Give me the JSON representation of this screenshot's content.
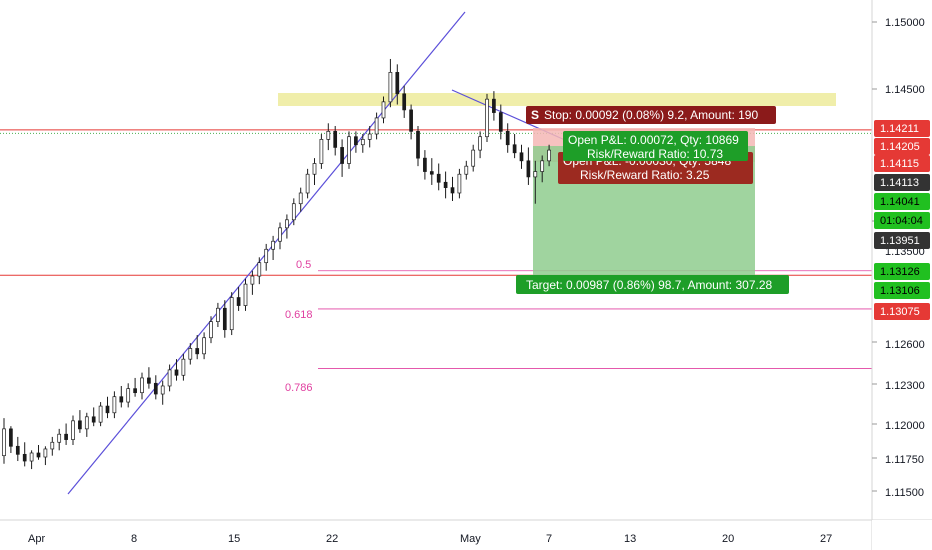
{
  "chart_data": {
    "type": "candlestick",
    "ylim": [
      1.113,
      1.1518
    ],
    "y_ticks": [
      "1.15000",
      "1.14500",
      "1.13500",
      "1.12600",
      "1.12300",
      "1.12000",
      "1.11750",
      "1.11500"
    ],
    "x_ticks": [
      "Apr",
      "8",
      "15",
      "22",
      "May",
      "7",
      "13",
      "20",
      "27"
    ],
    "overlay": {
      "gridlines": false,
      "horizontal_lines": [
        {
          "name": "upper-red-line",
          "y": 1.14211,
          "color": "#e53935"
        },
        {
          "name": "target-red-line",
          "y": 1.13126,
          "color": "#e53935"
        },
        {
          "name": "fib-0.5-line",
          "y": 1.1316,
          "color": "#e040a0",
          "label": "0.5"
        },
        {
          "name": "fib-0.618-line",
          "y": 1.12875,
          "color": "#e040a0",
          "label": "0.618"
        },
        {
          "name": "fib-0.786-line",
          "y": 1.1243,
          "color": "#e040a0",
          "label": "0.786"
        },
        {
          "name": "green-dotted-line",
          "y": 1.14185,
          "color": "#4caf50"
        }
      ],
      "resistance_zone": {
        "y_top": 1.14445,
        "y_bottom": 1.14375,
        "color": "#f0eeaa"
      }
    },
    "price_badges": [
      {
        "value": "1.14211",
        "bg": "#e53935",
        "fg": "#ffffff"
      },
      {
        "value": "1.14205",
        "bg": "#e53935",
        "fg": "#ffffff"
      },
      {
        "value": "1.14115",
        "bg": "#e53935",
        "fg": "#ffffff"
      },
      {
        "value": "1.14113",
        "bg": "#333333",
        "fg": "#ffffff"
      },
      {
        "value": "1.14041",
        "bg": "#21c020",
        "fg": "#000000"
      },
      {
        "value": "01:04:04",
        "bg": "#21c020",
        "fg": "#000000"
      },
      {
        "value": "1.13951",
        "bg": "#333333",
        "fg": "#ffffff"
      },
      {
        "value": "1.13126",
        "bg": "#21c020",
        "fg": "#000000"
      },
      {
        "value": "1.13106",
        "bg": "#21c020",
        "fg": "#000000"
      },
      {
        "value": "1.13075",
        "bg": "#e53935",
        "fg": "#ffffff"
      }
    ],
    "trade_boxes": {
      "stop_label": "S",
      "stop_text": "Stop: 0.00092 (0.08%) 9.2, Amount: 190",
      "open_pl_1": "Open P&L: 0.00072, Qty: 10869",
      "rr_1": "Risk/Reward Ratio: 10.73",
      "open_pl_2": "Open P&L: -0.00030, Qty: 5848",
      "rr_2": "Risk/Reward Ratio: 3.25",
      "target_text": "Target: 0.00987 (0.86%) 98.7, Amount: 307.28"
    },
    "candles": [
      [
        1.1178,
        1.1206,
        1.1172,
        1.1198
      ],
      [
        1.1198,
        1.12,
        1.118,
        1.1185
      ],
      [
        1.1185,
        1.1192,
        1.1174,
        1.1179
      ],
      [
        1.1179,
        1.1188,
        1.117,
        1.1174
      ],
      [
        1.1174,
        1.1182,
        1.1168,
        1.118
      ],
      [
        1.118,
        1.1186,
        1.1175,
        1.1177
      ],
      [
        1.1177,
        1.1185,
        1.1171,
        1.1183
      ],
      [
        1.1183,
        1.1192,
        1.1178,
        1.1188
      ],
      [
        1.1188,
        1.1198,
        1.1182,
        1.1194
      ],
      [
        1.1194,
        1.1202,
        1.1186,
        1.119
      ],
      [
        1.119,
        1.1208,
        1.1186,
        1.1204
      ],
      [
        1.1204,
        1.1212,
        1.1195,
        1.1198
      ],
      [
        1.1198,
        1.121,
        1.1192,
        1.1207
      ],
      [
        1.1207,
        1.1214,
        1.12,
        1.1203
      ],
      [
        1.1203,
        1.1218,
        1.12,
        1.1215
      ],
      [
        1.1215,
        1.1222,
        1.1206,
        1.121
      ],
      [
        1.121,
        1.1226,
        1.1206,
        1.1222
      ],
      [
        1.1222,
        1.123,
        1.1214,
        1.1218
      ],
      [
        1.1218,
        1.1232,
        1.1214,
        1.1228
      ],
      [
        1.1228,
        1.1236,
        1.1222,
        1.1225
      ],
      [
        1.1225,
        1.124,
        1.122,
        1.1236
      ],
      [
        1.1236,
        1.1244,
        1.1228,
        1.1232
      ],
      [
        1.1232,
        1.1238,
        1.122,
        1.1224
      ],
      [
        1.1224,
        1.1234,
        1.1216,
        1.123
      ],
      [
        1.123,
        1.1246,
        1.1226,
        1.1242
      ],
      [
        1.1242,
        1.125,
        1.1234,
        1.1238
      ],
      [
        1.1238,
        1.1254,
        1.1234,
        1.125
      ],
      [
        1.125,
        1.1262,
        1.1246,
        1.1258
      ],
      [
        1.1258,
        1.1268,
        1.125,
        1.1254
      ],
      [
        1.1254,
        1.127,
        1.125,
        1.1266
      ],
      [
        1.1266,
        1.1282,
        1.1262,
        1.1278
      ],
      [
        1.1278,
        1.1292,
        1.1274,
        1.1288
      ],
      [
        1.1288,
        1.1294,
        1.1266,
        1.1272
      ],
      [
        1.1272,
        1.13,
        1.1268,
        1.1296
      ],
      [
        1.1296,
        1.1304,
        1.1286,
        1.129
      ],
      [
        1.129,
        1.131,
        1.1286,
        1.1306
      ],
      [
        1.1306,
        1.1316,
        1.1298,
        1.1312
      ],
      [
        1.1312,
        1.1326,
        1.1306,
        1.1322
      ],
      [
        1.1322,
        1.1336,
        1.1316,
        1.1332
      ],
      [
        1.1332,
        1.1342,
        1.1324,
        1.1338
      ],
      [
        1.1338,
        1.1352,
        1.1332,
        1.1348
      ],
      [
        1.1348,
        1.1358,
        1.134,
        1.1354
      ],
      [
        1.1354,
        1.137,
        1.135,
        1.1366
      ],
      [
        1.1366,
        1.1378,
        1.136,
        1.1374
      ],
      [
        1.1374,
        1.1392,
        1.137,
        1.1388
      ],
      [
        1.1388,
        1.14,
        1.138,
        1.1396
      ],
      [
        1.1396,
        1.1418,
        1.1392,
        1.1414
      ],
      [
        1.1414,
        1.1426,
        1.1406,
        1.142
      ],
      [
        1.142,
        1.1424,
        1.1402,
        1.1408
      ],
      [
        1.1408,
        1.1414,
        1.1386,
        1.1396
      ],
      [
        1.1396,
        1.142,
        1.1392,
        1.1416
      ],
      [
        1.1416,
        1.142,
        1.1404,
        1.141
      ],
      [
        1.141,
        1.1418,
        1.1404,
        1.1414
      ],
      [
        1.1414,
        1.1424,
        1.1408,
        1.1418
      ],
      [
        1.1418,
        1.1434,
        1.1414,
        1.143
      ],
      [
        1.143,
        1.1446,
        1.1426,
        1.1442
      ],
      [
        1.1442,
        1.1474,
        1.1438,
        1.1464
      ],
      [
        1.1464,
        1.147,
        1.144,
        1.1448
      ],
      [
        1.1448,
        1.1454,
        1.143,
        1.1436
      ],
      [
        1.1436,
        1.144,
        1.1414,
        1.142
      ],
      [
        1.142,
        1.1424,
        1.1394,
        1.14
      ],
      [
        1.14,
        1.1406,
        1.1384,
        1.139
      ],
      [
        1.139,
        1.14,
        1.138,
        1.1388
      ],
      [
        1.1388,
        1.1396,
        1.1376,
        1.1382
      ],
      [
        1.1382,
        1.139,
        1.137,
        1.1378
      ],
      [
        1.1378,
        1.1386,
        1.1368,
        1.1374
      ],
      [
        1.1374,
        1.1392,
        1.137,
        1.1388
      ],
      [
        1.1388,
        1.1398,
        1.1384,
        1.1394
      ],
      [
        1.1394,
        1.141,
        1.139,
        1.1406
      ],
      [
        1.1406,
        1.142,
        1.14,
        1.1416
      ],
      [
        1.1416,
        1.1448,
        1.1412,
        1.1444
      ],
      [
        1.1444,
        1.145,
        1.1428,
        1.1434
      ],
      [
        1.1434,
        1.144,
        1.1414,
        1.142
      ],
      [
        1.142,
        1.1426,
        1.1404,
        1.141
      ],
      [
        1.141,
        1.1418,
        1.14,
        1.1404
      ],
      [
        1.1404,
        1.141,
        1.1392,
        1.1398
      ],
      [
        1.1398,
        1.1408,
        1.138,
        1.1386
      ],
      [
        1.1386,
        1.1398,
        1.1366,
        1.139
      ],
      [
        1.139,
        1.1402,
        1.1382,
        1.1398
      ],
      [
        1.1398,
        1.141,
        1.1394,
        1.1406
      ]
    ]
  }
}
